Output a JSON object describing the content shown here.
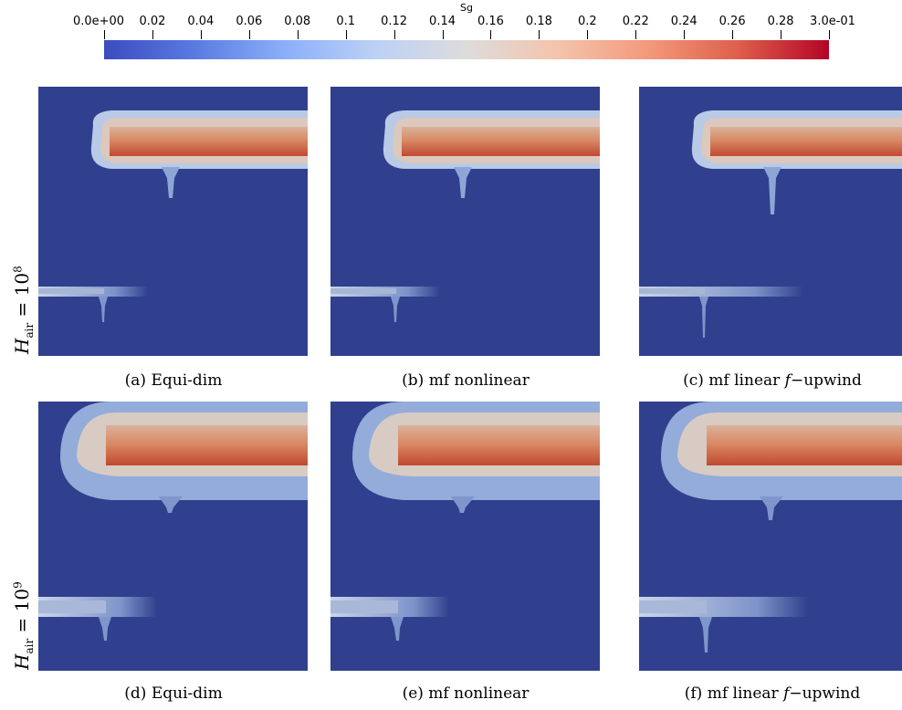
{
  "colorbar": {
    "title": "Sg",
    "ticks": [
      "0.0e+00",
      "0.02",
      "0.04",
      "0.06",
      "0.08",
      "0.1",
      "0.12",
      "0.14",
      "0.16",
      "0.18",
      "0.2",
      "0.22",
      "0.24",
      "0.26",
      "0.28",
      "3.0e-01"
    ],
    "range": [
      0.0,
      0.3
    ],
    "colormap": "coolwarm"
  },
  "rows": [
    {
      "label_base": "H",
      "label_sub": "air",
      "label_eq": " = 10",
      "label_sup": "8"
    },
    {
      "label_base": "H",
      "label_sub": "air",
      "label_eq": " = 10",
      "label_sup": "9"
    }
  ],
  "captions": {
    "a": "(a) Equi-dim",
    "b": "(b) mf nonlinear",
    "c_pre": "(c) mf linear ",
    "c_f": "f",
    "c_post": "−upwind",
    "d": "(d) Equi-dim",
    "e": "(e) mf nonlinear",
    "f_pre": "(f) mf linear ",
    "f_f": "f",
    "f_post": "−upwind"
  },
  "colors": {
    "background": "#30408e",
    "plume_core": "#c8553c",
    "plume_edge": "#b5c6e6"
  }
}
